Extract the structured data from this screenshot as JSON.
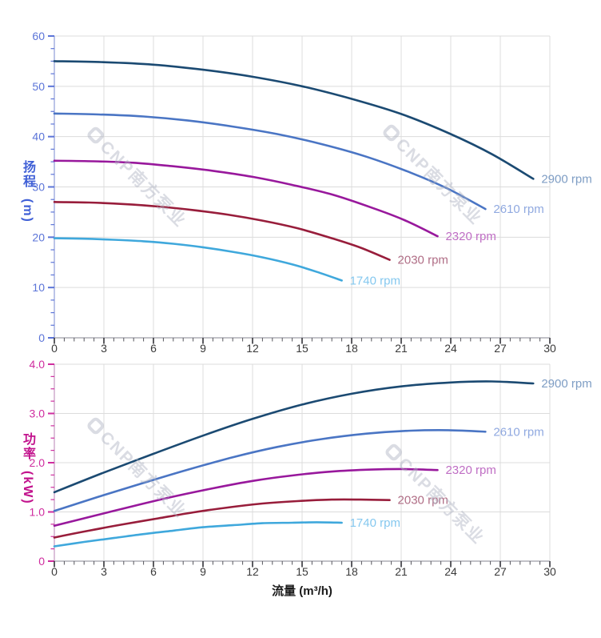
{
  "watermark": {
    "text": "CNP南方泵业"
  },
  "x_axis_title": "流量 (m³/h)",
  "chart_data": [
    {
      "id": "head",
      "type": "line",
      "title": "",
      "xlabel": "流量 (m³/h)",
      "ylabel": "扬程 (m)",
      "ylabel_cjk": "扬程",
      "ylabel_unit": "(m)",
      "xlim": [
        0,
        30
      ],
      "ylim": [
        0,
        60
      ],
      "grid": true,
      "legend_position": "curve-end-labels",
      "x_major_ticks": [
        0,
        3,
        6,
        9,
        12,
        15,
        18,
        21,
        24,
        27,
        30
      ],
      "x_tick_labels": [
        "0",
        "3",
        "6",
        "9",
        "12",
        "15",
        "18",
        "21",
        "24",
        "27",
        "30"
      ],
      "x_minor_step": 0.6,
      "y_major_ticks": [
        0,
        10,
        20,
        30,
        40,
        50,
        60
      ],
      "y_tick_labels": [
        "0",
        "10",
        "20",
        "30",
        "40",
        "50",
        "60"
      ],
      "y_minor_step": 2.5,
      "axis_color": "#5b74d8",
      "title_color": "#3f5fd6",
      "axis_line_color": "#bcc4e8",
      "series": [
        {
          "name": "2900 rpm",
          "color": "#1b4a72",
          "label_color": "#7e9dc4",
          "x": [
            0,
            3,
            6,
            9,
            12,
            15,
            18,
            21,
            24,
            26.5,
            29
          ],
          "y": [
            55,
            54.8,
            54.3,
            53.3,
            51.9,
            50,
            47.5,
            44.5,
            40.5,
            36.5,
            31.6
          ]
        },
        {
          "name": "2610 rpm",
          "color": "#4a75c4",
          "label_color": "#90a9e0",
          "x": [
            0,
            2.7,
            5.4,
            8.1,
            10.8,
            13.5,
            16.2,
            18.9,
            21.6,
            23.85,
            26.1
          ],
          "y": [
            44.6,
            44.4,
            44,
            43.2,
            42,
            40.5,
            38.5,
            36,
            32.8,
            29.6,
            25.6
          ]
        },
        {
          "name": "2320 rpm",
          "color": "#98189c",
          "label_color": "#bf6ec4",
          "x": [
            0,
            2.4,
            4.8,
            7.2,
            9.6,
            12,
            14.4,
            16.8,
            19.2,
            21.2,
            23.2
          ],
          "y": [
            35.2,
            35.1,
            34.8,
            34.1,
            33.2,
            32,
            30.4,
            28.5,
            25.9,
            23.4,
            20.2
          ]
        },
        {
          "name": "2030 rpm",
          "color": "#981d3b",
          "label_color": "#b06e86",
          "x": [
            0,
            2.1,
            4.2,
            6.3,
            8.4,
            10.5,
            12.6,
            14.7,
            16.8,
            18.55,
            20.3
          ],
          "y": [
            27,
            26.9,
            26.6,
            26.1,
            25.4,
            24.5,
            23.3,
            21.8,
            19.8,
            17.9,
            15.5
          ]
        },
        {
          "name": "1740 rpm",
          "color": "#3fa8dc",
          "label_color": "#85c8ef",
          "x": [
            0,
            1.8,
            3.6,
            5.4,
            7.2,
            9,
            10.8,
            12.6,
            14.4,
            15.9,
            17.4
          ],
          "y": [
            19.8,
            19.7,
            19.5,
            19.2,
            18.7,
            18,
            17.1,
            16,
            14.6,
            13.1,
            11.4
          ]
        }
      ]
    },
    {
      "id": "power",
      "type": "line",
      "title": "",
      "xlabel": "流量 (m³/h)",
      "ylabel": "功率 (kW)",
      "ylabel_cjk": "功率",
      "ylabel_unit": "(kW)",
      "xlim": [
        0,
        30
      ],
      "ylim": [
        0,
        4
      ],
      "grid": true,
      "legend_position": "curve-end-labels",
      "x_major_ticks": [
        0,
        3,
        6,
        9,
        12,
        15,
        18,
        21,
        24,
        27,
        30
      ],
      "x_tick_labels": [
        "0",
        "3",
        "6",
        "9",
        "12",
        "15",
        "18",
        "21",
        "24",
        "27",
        "30"
      ],
      "x_minor_step": 0.6,
      "y_major_ticks": [
        0,
        1,
        2,
        3,
        4
      ],
      "y_tick_labels": [
        "0",
        "1.0",
        "2.0",
        "3.0",
        "4.0"
      ],
      "y_minor_step": 0.25,
      "axis_color": "#cf2d9f",
      "title_color": "#c2138d",
      "axis_line_color": "#dcc0da",
      "series": [
        {
          "name": "2900 rpm",
          "color": "#1b4a72",
          "label_color": "#7e9dc4",
          "x": [
            0,
            3,
            6,
            9,
            12,
            15,
            18,
            21,
            24,
            26.5,
            29
          ],
          "y": [
            1.4,
            1.8,
            2.18,
            2.55,
            2.89,
            3.18,
            3.4,
            3.55,
            3.63,
            3.65,
            3.61
          ]
        },
        {
          "name": "2610 rpm",
          "color": "#4a75c4",
          "label_color": "#90a9e0",
          "x": [
            0,
            2.7,
            5.4,
            8.1,
            10.8,
            13.5,
            16.2,
            18.9,
            21.6,
            23.85,
            26.1
          ],
          "y": [
            1.02,
            1.31,
            1.59,
            1.86,
            2.11,
            2.32,
            2.48,
            2.59,
            2.65,
            2.66,
            2.63
          ]
        },
        {
          "name": "2320 rpm",
          "color": "#98189c",
          "label_color": "#bf6ec4",
          "x": [
            0,
            2.4,
            4.8,
            7.2,
            9.6,
            12,
            14.4,
            16.8,
            19.2,
            21.2,
            23.2
          ],
          "y": [
            0.72,
            0.92,
            1.12,
            1.31,
            1.48,
            1.63,
            1.74,
            1.82,
            1.86,
            1.87,
            1.85
          ]
        },
        {
          "name": "2030 rpm",
          "color": "#981d3b",
          "label_color": "#b06e86",
          "x": [
            0,
            2.1,
            4.2,
            6.3,
            8.4,
            10.5,
            12.6,
            14.7,
            16.8,
            18.55,
            20.3
          ],
          "y": [
            0.48,
            0.62,
            0.75,
            0.87,
            0.99,
            1.09,
            1.17,
            1.22,
            1.25,
            1.25,
            1.24
          ]
        },
        {
          "name": "1740 rpm",
          "color": "#3fa8dc",
          "label_color": "#85c8ef",
          "x": [
            0,
            1.8,
            3.6,
            5.4,
            7.2,
            9,
            10.8,
            12.6,
            14.4,
            15.9,
            17.4
          ],
          "y": [
            0.3,
            0.39,
            0.47,
            0.55,
            0.62,
            0.69,
            0.73,
            0.77,
            0.78,
            0.79,
            0.78
          ]
        }
      ]
    }
  ]
}
